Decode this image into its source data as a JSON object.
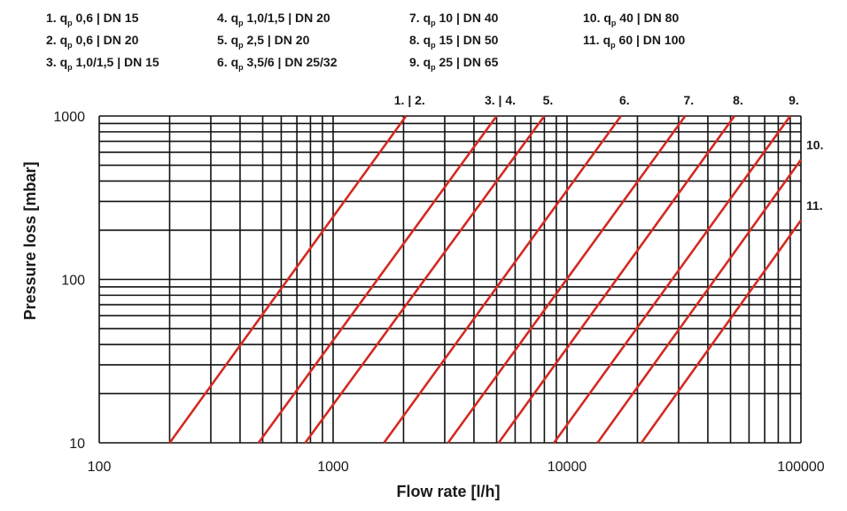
{
  "chart_data": {
    "type": "line",
    "title": "",
    "xlabel": "Flow rate [l/h]",
    "ylabel": "Pressure loss [mbar]",
    "xscale": "log",
    "yscale": "log",
    "xlim": [
      100,
      100000
    ],
    "ylim": [
      10,
      1000
    ],
    "x_ticks": [
      "100",
      "1000",
      "10000",
      "100000"
    ],
    "y_ticks": [
      "10",
      "100",
      "1000"
    ],
    "grid": true,
    "legend": {
      "placement": "top",
      "columns": [
        [
          "1. q|p 0,6 | DN 15",
          "2. q|p 0,6 | DN 20",
          "3. q|p 1,0/1,5 | DN 15"
        ],
        [
          "4. q|p 1,0/1,5 | DN 20",
          "5. q|p 2,5 | DN 20",
          "6. q|p 3,5/6 | DN 25/32"
        ],
        [
          "7. q|p 10 | DN 40",
          "8. q|p 15 | DN 50",
          "9. q|p 25 | DN 65"
        ],
        [
          "10. q|p 40 | DN 80",
          "11. q|p 60 | DN 100"
        ]
      ]
    },
    "series": [
      {
        "label": "1. | 2.",
        "color": "#d42a22",
        "points": [
          [
            200,
            10
          ],
          [
            2050,
            1000
          ]
        ]
      },
      {
        "label": "3. | 4.",
        "color": "#d42a22",
        "points": [
          [
            480,
            10
          ],
          [
            5000,
            1000
          ]
        ]
      },
      {
        "label": "5.",
        "color": "#d42a22",
        "points": [
          [
            760,
            10
          ],
          [
            8000,
            1000
          ]
        ]
      },
      {
        "label": "6.",
        "color": "#d42a22",
        "points": [
          [
            1650,
            10
          ],
          [
            17000,
            1000
          ]
        ]
      },
      {
        "label": "7.",
        "color": "#d42a22",
        "points": [
          [
            3100,
            10
          ],
          [
            32000,
            1000
          ]
        ]
      },
      {
        "label": "8.",
        "color": "#d42a22",
        "points": [
          [
            5100,
            10
          ],
          [
            52000,
            1000
          ]
        ]
      },
      {
        "label": "9.",
        "color": "#d42a22",
        "points": [
          [
            8800,
            10
          ],
          [
            90000,
            1000
          ]
        ]
      },
      {
        "label": "10.",
        "color": "#d42a22",
        "points": [
          [
            13500,
            10
          ],
          [
            100000,
            540
          ]
        ]
      },
      {
        "label": "11.",
        "color": "#d42a22",
        "points": [
          [
            20800,
            10
          ],
          [
            100000,
            230
          ]
        ]
      }
    ],
    "curve_labels": [
      {
        "text": "1. | 2.",
        "x": 2050
      },
      {
        "text": "3. | 4.",
        "x": 5000
      },
      {
        "text": "5.",
        "x": 8000
      },
      {
        "text": "6.",
        "x": 17000
      },
      {
        "text": "7.",
        "x": 32000
      },
      {
        "text": "8.",
        "x": 52000
      },
      {
        "text": "9.",
        "x": 90000
      },
      {
        "text": "10.",
        "y": 540
      },
      {
        "text": "11.",
        "y": 230
      }
    ]
  }
}
